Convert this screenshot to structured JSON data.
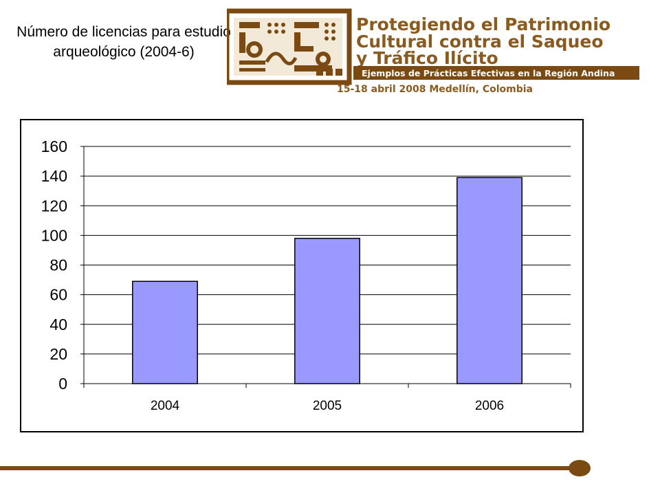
{
  "slide": {
    "title": "Número de licencias para estudio arqueológico (2004-6)"
  },
  "logo": {
    "line1": "Protegiendo el Patrimonio",
    "line2": "Cultural contra el Saqueo",
    "line3": "y Tráfico Ilícito",
    "banner": "Ejemplos de Prácticas Efectivas en la Región Andina",
    "event": "15-18 abril 2008 Medellín, Colombia"
  },
  "colors": {
    "brand_brown": "#7a4a12",
    "bar_fill": "#9999ff",
    "logo_text": "#8b5a1e"
  },
  "chart_data": {
    "type": "bar",
    "categories": [
      "2004",
      "2005",
      "2006"
    ],
    "values": [
      69,
      98,
      139
    ],
    "title": "",
    "xlabel": "",
    "ylabel": "",
    "ylim": [
      0,
      160
    ],
    "yticks": [
      0,
      20,
      40,
      60,
      80,
      100,
      120,
      140,
      160
    ],
    "grid": true,
    "legend": "none"
  }
}
